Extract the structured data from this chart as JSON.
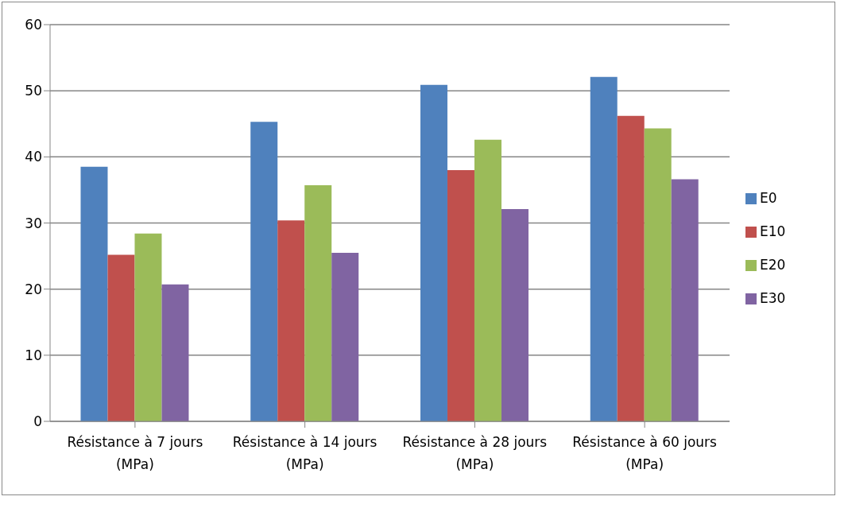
{
  "chart_data": {
    "type": "bar",
    "categories": [
      "Résistance à 7 jours (MPa)",
      "Résistance à 14 jours (MPa)",
      "Résistance à 28 jours (MPa)",
      "Résistance à 60 jours (MPa)"
    ],
    "series": [
      {
        "name": "E0",
        "color": "#4f81bd",
        "values": [
          38.5,
          45.3,
          50.9,
          52.1
        ]
      },
      {
        "name": "E10",
        "color": "#c0504d",
        "values": [
          25.2,
          30.4,
          38.0,
          46.2
        ]
      },
      {
        "name": "E20",
        "color": "#9bbb59",
        "values": [
          28.4,
          35.7,
          42.6,
          44.3
        ]
      },
      {
        "name": "E30",
        "color": "#8064a2",
        "values": [
          20.7,
          25.5,
          32.1,
          36.6
        ]
      }
    ],
    "ylim": [
      0,
      60
    ],
    "yticks": [
      0,
      10,
      20,
      30,
      40,
      50,
      60
    ],
    "grid": "y",
    "legend": "right"
  }
}
